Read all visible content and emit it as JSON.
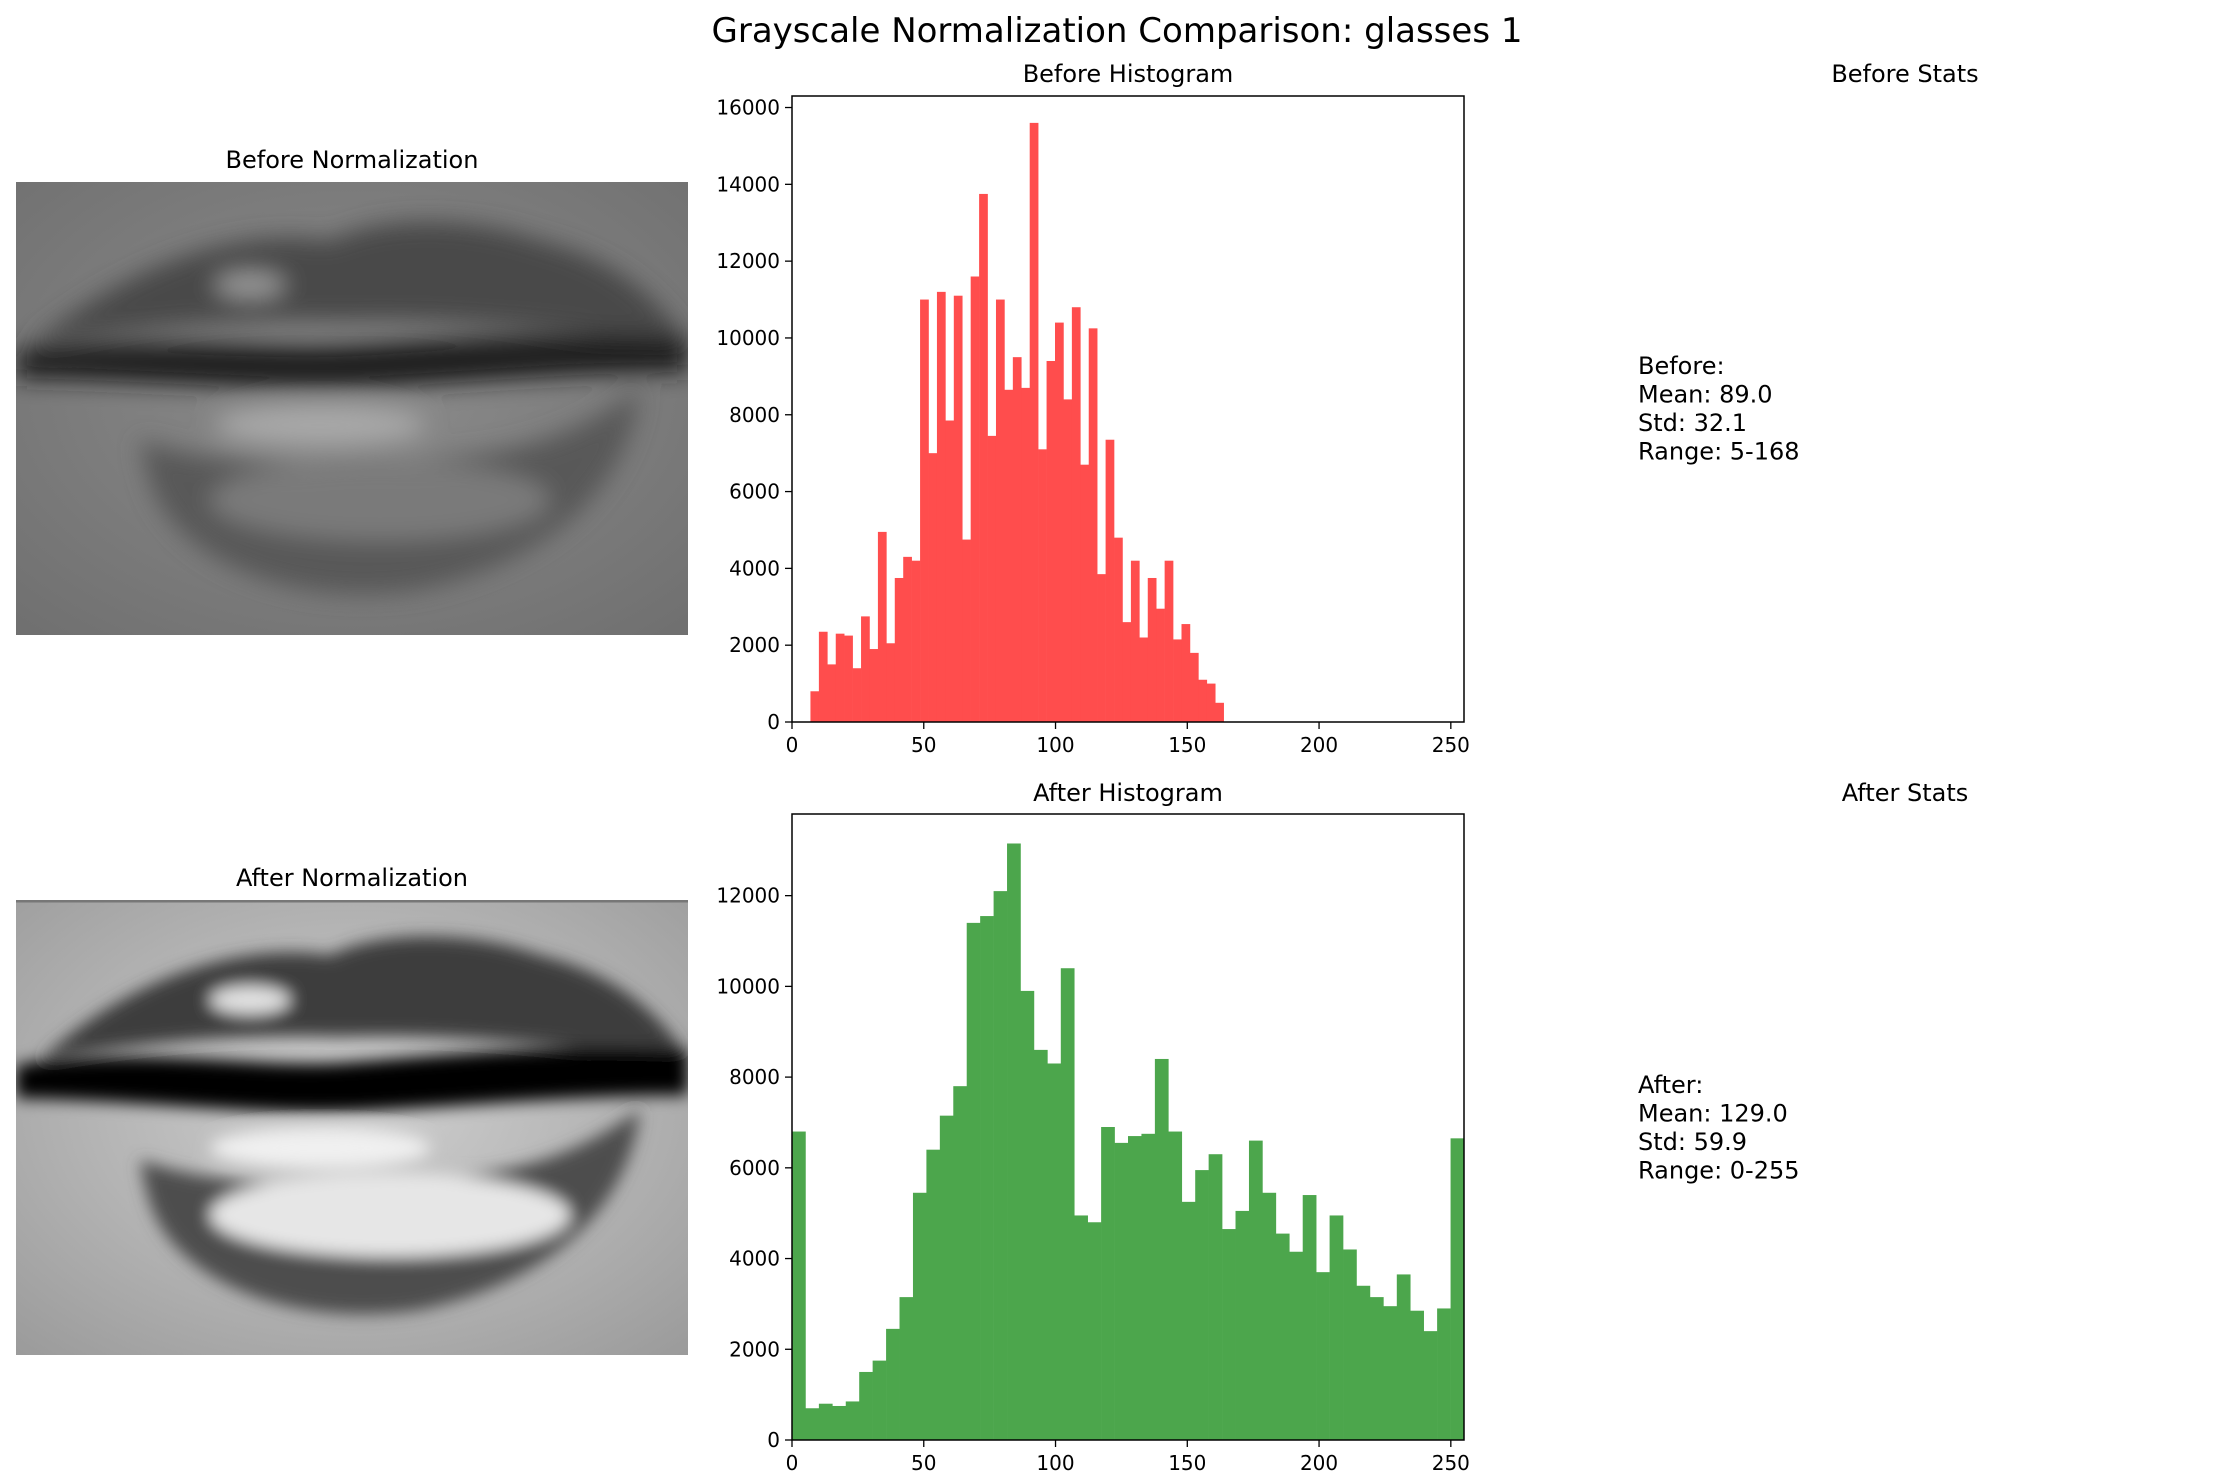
{
  "figure": {
    "title": "Grayscale Normalization Comparison: glasses 1"
  },
  "panels": {
    "before_image": {
      "title": "Before Normalization"
    },
    "after_image": {
      "title": "After Normalization"
    },
    "before_stats": {
      "title": "Before Stats",
      "lines": [
        "Before:",
        "Mean: 89.0",
        "Std: 32.1",
        "Range: 5-168"
      ]
    },
    "after_stats": {
      "title": "After Stats",
      "lines": [
        "After:",
        "Mean: 129.0",
        "Std: 59.9",
        "Range: 0-255"
      ]
    }
  },
  "colors": {
    "before_hist": "#ff4d4d",
    "after_hist": "#4ca64c"
  },
  "chart_data": [
    {
      "type": "bar",
      "title": "Before Histogram",
      "xlabel": "",
      "ylabel": "",
      "xlim": [
        0,
        255
      ],
      "ylim": [
        0,
        16300
      ],
      "xticks": [
        0,
        50,
        100,
        150,
        200,
        250
      ],
      "yticks": [
        0,
        2000,
        4000,
        6000,
        8000,
        10000,
        12000,
        14000,
        16000
      ],
      "grid": false,
      "bin_width": 3.2,
      "bin_starts": [
        7.0,
        10.2,
        13.4,
        16.6,
        19.8,
        23.0,
        26.2,
        29.4,
        32.6,
        35.8,
        39.0,
        42.2,
        45.4,
        48.6,
        51.8,
        55.0,
        58.2,
        61.4,
        64.6,
        67.8,
        71.0,
        74.2,
        77.4,
        80.6,
        83.8,
        87.0,
        90.2,
        93.4,
        96.6,
        99.8,
        103.0,
        106.2,
        109.4,
        112.6,
        115.8,
        119.0,
        122.2,
        125.4,
        128.6,
        131.8,
        135.0,
        138.2,
        141.4,
        144.6,
        147.8,
        151.0,
        154.2,
        157.4,
        160.6
      ],
      "values": [
        800,
        2350,
        1500,
        2300,
        2250,
        1400,
        2750,
        1900,
        4950,
        2050,
        3750,
        4300,
        4200,
        11000,
        7000,
        11200,
        7850,
        11100,
        4750,
        11600,
        13750,
        7450,
        11000,
        8650,
        9500,
        8700,
        15600,
        7100,
        9400,
        10400,
        8400,
        10800,
        6700,
        10250,
        3850,
        7350,
        4800,
        2600,
        4200,
        2200,
        3750,
        2950,
        4200,
        2150,
        2550,
        1800,
        1100,
        1000,
        500
      ]
    },
    {
      "type": "bar",
      "title": "After Histogram",
      "xlabel": "",
      "ylabel": "",
      "xlim": [
        0,
        255
      ],
      "ylim": [
        0,
        13800
      ],
      "xticks": [
        0,
        50,
        100,
        150,
        200,
        250
      ],
      "yticks": [
        0,
        2000,
        4000,
        6000,
        8000,
        10000,
        12000
      ],
      "grid": false,
      "bin_width": 5.1,
      "values": [
        6800,
        700,
        800,
        750,
        850,
        1500,
        1750,
        2450,
        3150,
        5450,
        6400,
        7150,
        7800,
        11400,
        11550,
        12100,
        13150,
        9900,
        8600,
        8300,
        10400,
        4950,
        4800,
        6900,
        6550,
        6700,
        6750,
        8400,
        6800,
        5250,
        5950,
        6300,
        4650,
        5050,
        6600,
        5450,
        4550,
        4150,
        5400,
        3700,
        4950,
        4200,
        3400,
        3150,
        2950,
        3650,
        2850,
        2400,
        2900,
        6650
      ]
    }
  ]
}
